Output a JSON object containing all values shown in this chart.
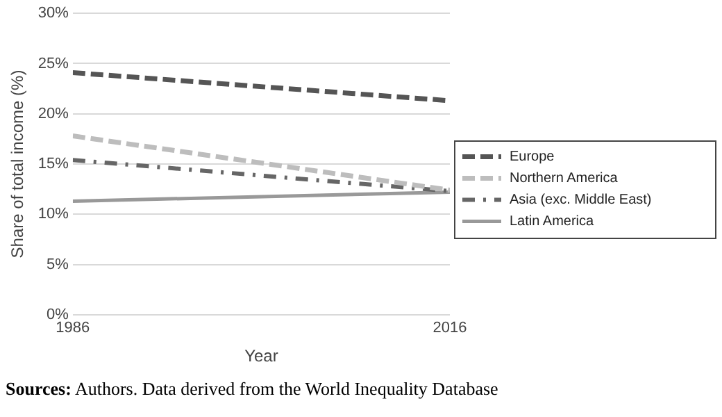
{
  "chart_data": {
    "type": "line",
    "xlabel": "Year",
    "ylabel": "Share of total income (%)",
    "x": [
      1986,
      2016
    ],
    "xlim": [
      1986,
      2016
    ],
    "xticks": [
      1986,
      2016
    ],
    "ylim": [
      0,
      30
    ],
    "yticks": [
      {
        "value": 0,
        "label": "0%"
      },
      {
        "value": 5,
        "label": "5%"
      },
      {
        "value": 10,
        "label": "10%"
      },
      {
        "value": 15,
        "label": "15%"
      },
      {
        "value": 20,
        "label": "20%"
      },
      {
        "value": 25,
        "label": "25%"
      },
      {
        "value": 30,
        "label": "30%"
      }
    ],
    "series": [
      {
        "name": "Europe",
        "color": "#555555",
        "values": [
          24.1,
          21.3
        ],
        "line_style": "dashed"
      },
      {
        "name": "Northern America",
        "color": "#bdbdbd",
        "values": [
          17.8,
          12.4
        ],
        "line_style": "dashed"
      },
      {
        "name": "Asia (exc. Middle East)",
        "color": "#666666",
        "values": [
          15.4,
          12.3
        ],
        "line_style": "dashdot"
      },
      {
        "name": "Latin America",
        "color": "#999999",
        "values": [
          11.3,
          12.2
        ],
        "line_style": "solid"
      }
    ],
    "grid": "y",
    "legend": "right",
    "marker": "none",
    "annotations": [
      "Sources: Authors. Data derived from the World Inequality Database"
    ]
  }
}
